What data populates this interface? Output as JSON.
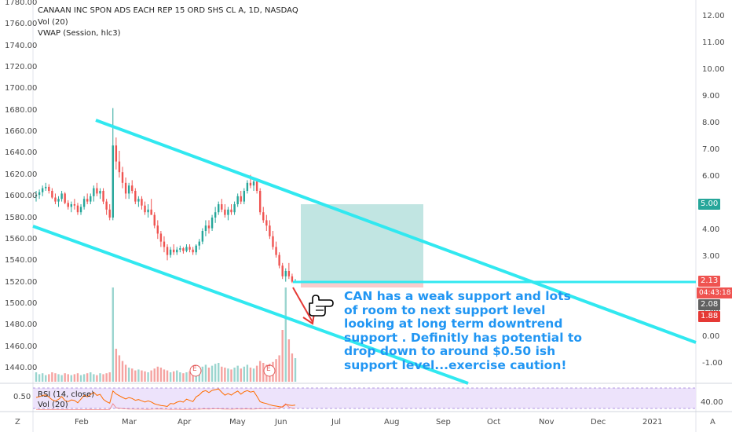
{
  "legend": {
    "title": "CANAAN INC SPON ADS EACH REP 15 ORD SHS CL A, 1D, NASDAQ",
    "vol": "Vol (20)",
    "vwap": "VWAP (Session, hlc3)"
  },
  "left_axis": [
    "1780.00",
    "1760.00",
    "1740.00",
    "1720.00",
    "1700.00",
    "1680.00",
    "1660.00",
    "1640.00",
    "1620.00",
    "1600.00",
    "1580.00",
    "1560.00",
    "1540.00",
    "1520.00",
    "1500.00",
    "1480.00",
    "1460.00",
    "1440.00"
  ],
  "right_axis": [
    "12.00",
    "11.00",
    "10.00",
    "9.00",
    "8.00",
    "7.00",
    "6.00",
    "5.00",
    "4.00",
    "3.00",
    "2.00",
    "1.00",
    "0.00",
    "-1.00"
  ],
  "right_badges": {
    "target": "5.00",
    "last": "2.13",
    "countdown": "04:43:18",
    "price2": "2.08",
    "stop": "1.88"
  },
  "x_axis": [
    "Feb",
    "Mar",
    "Apr",
    "May",
    "Jun",
    "Jul",
    "Aug",
    "Sep",
    "Oct",
    "Nov",
    "Dec",
    "2021"
  ],
  "events": [
    "E",
    "E"
  ],
  "rsi_panel": {
    "label": "RSI (14, close)",
    "vol": "Vol (20)",
    "left_tick": "0.50",
    "right_tick": "40.00"
  },
  "corners": {
    "bottom_left": "Z",
    "bottom_right": "A"
  },
  "annotation": "CAN has a weak support and lots of room to next support level looking at long term downtrend support . Definitly has potential to drop down to around $0.50 ish  support level...exercise caution!",
  "colors": {
    "channel": "#31e8f0",
    "candle_up": "#26a69a",
    "candle_down": "#ef5350",
    "annotation": "#2196f3",
    "target_zone": "#b2dfdb",
    "rsi_band": "#ede3fb",
    "rsi_line": "#ff6d00"
  },
  "chart_data": {
    "type": "candlestick",
    "price_scale_right": [
      -1,
      12
    ],
    "ohlc_price_right_axis": [
      [
        5.3,
        5.5,
        5.1,
        5.35
      ],
      [
        5.35,
        5.55,
        5.2,
        5.45
      ],
      [
        5.45,
        5.7,
        5.3,
        5.6
      ],
      [
        5.6,
        5.8,
        5.5,
        5.65
      ],
      [
        5.65,
        5.75,
        5.4,
        5.5
      ],
      [
        5.5,
        5.6,
        5.2,
        5.25
      ],
      [
        5.25,
        5.4,
        5.0,
        5.1
      ],
      [
        5.1,
        5.3,
        4.9,
        5.2
      ],
      [
        5.2,
        5.5,
        5.1,
        5.4
      ],
      [
        5.4,
        5.45,
        5.0,
        5.05
      ],
      [
        5.05,
        5.15,
        4.8,
        4.9
      ],
      [
        4.9,
        5.1,
        4.7,
        5.0
      ],
      [
        5.0,
        5.2,
        4.8,
        4.95
      ],
      [
        4.95,
        5.05,
        4.6,
        4.7
      ],
      [
        4.7,
        5.0,
        4.6,
        4.9
      ],
      [
        4.9,
        5.3,
        4.8,
        5.2
      ],
      [
        5.2,
        5.4,
        5.0,
        5.1
      ],
      [
        5.1,
        5.4,
        5.0,
        5.3
      ],
      [
        5.3,
        5.7,
        5.1,
        5.6
      ],
      [
        5.6,
        5.8,
        5.3,
        5.4
      ],
      [
        5.4,
        5.6,
        5.2,
        5.5
      ],
      [
        5.5,
        5.6,
        5.0,
        5.1
      ],
      [
        5.1,
        5.2,
        4.6,
        4.8
      ],
      [
        4.8,
        5.0,
        4.4,
        4.5
      ],
      [
        4.5,
        8.6,
        4.4,
        7.2
      ],
      [
        7.2,
        7.5,
        6.3,
        6.6
      ],
      [
        6.6,
        7.0,
        6.0,
        6.2
      ],
      [
        6.2,
        6.4,
        5.6,
        5.8
      ],
      [
        5.8,
        6.0,
        5.2,
        5.4
      ],
      [
        5.4,
        5.8,
        5.2,
        5.7
      ],
      [
        5.7,
        5.9,
        5.4,
        5.5
      ],
      [
        5.5,
        5.6,
        5.0,
        5.1
      ],
      [
        5.1,
        5.3,
        4.9,
        5.2
      ],
      [
        5.2,
        5.3,
        4.8,
        4.95
      ],
      [
        4.95,
        5.1,
        4.6,
        4.7
      ],
      [
        4.7,
        5.0,
        4.5,
        4.8
      ],
      [
        4.8,
        5.2,
        4.6,
        4.6
      ],
      [
        4.6,
        4.7,
        4.1,
        4.2
      ],
      [
        4.2,
        4.4,
        3.7,
        3.9
      ],
      [
        3.9,
        4.0,
        3.4,
        3.6
      ],
      [
        3.6,
        3.8,
        3.2,
        3.4
      ],
      [
        3.4,
        3.5,
        2.9,
        3.1
      ],
      [
        3.1,
        3.4,
        3.0,
        3.3
      ],
      [
        3.3,
        3.5,
        3.1,
        3.2
      ],
      [
        3.2,
        3.4,
        3.1,
        3.3
      ],
      [
        3.3,
        3.45,
        3.2,
        3.35
      ],
      [
        3.35,
        3.4,
        3.15,
        3.25
      ],
      [
        3.25,
        3.5,
        3.2,
        3.4
      ],
      [
        3.4,
        3.5,
        3.2,
        3.3
      ],
      [
        3.3,
        3.4,
        3.1,
        3.2
      ],
      [
        3.2,
        3.5,
        3.1,
        3.45
      ],
      [
        3.45,
        3.7,
        3.3,
        3.6
      ],
      [
        3.6,
        4.1,
        3.5,
        4.0
      ],
      [
        4.0,
        4.4,
        3.8,
        4.2
      ],
      [
        4.2,
        4.4,
        3.9,
        4.1
      ],
      [
        4.1,
        4.6,
        4.0,
        4.5
      ],
      [
        4.5,
        4.9,
        4.3,
        4.7
      ],
      [
        4.7,
        5.1,
        4.6,
        5.0
      ],
      [
        5.0,
        5.2,
        4.7,
        4.8
      ],
      [
        4.8,
        5.0,
        4.5,
        4.6
      ],
      [
        4.6,
        4.9,
        4.4,
        4.8
      ],
      [
        4.8,
        5.0,
        4.6,
        4.7
      ],
      [
        4.7,
        5.1,
        4.6,
        5.0
      ],
      [
        5.0,
        5.4,
        4.9,
        5.3
      ],
      [
        5.3,
        5.5,
        5.0,
        5.1
      ],
      [
        5.1,
        5.6,
        5.0,
        5.5
      ],
      [
        5.5,
        5.9,
        5.4,
        5.8
      ],
      [
        5.8,
        6.1,
        5.6,
        5.7
      ],
      [
        5.7,
        5.9,
        5.5,
        5.85
      ],
      [
        5.85,
        5.95,
        5.4,
        5.5
      ],
      [
        5.5,
        5.6,
        4.6,
        4.7
      ],
      [
        4.7,
        4.9,
        4.3,
        4.4
      ],
      [
        4.4,
        4.6,
        4.0,
        4.2
      ],
      [
        4.2,
        4.4,
        3.7,
        3.8
      ],
      [
        3.8,
        4.0,
        3.3,
        3.4
      ],
      [
        3.4,
        3.6,
        3.0,
        3.1
      ],
      [
        3.1,
        3.2,
        2.6,
        2.7
      ],
      [
        2.7,
        2.8,
        2.2,
        2.3
      ],
      [
        2.3,
        2.6,
        2.1,
        2.5
      ],
      [
        2.5,
        2.8,
        2.2,
        2.3
      ],
      [
        2.3,
        2.4,
        2.05,
        2.1
      ],
      [
        2.1,
        2.2,
        2.05,
        2.13
      ]
    ],
    "volume_relative": [
      0.1,
      0.08,
      0.09,
      0.07,
      0.08,
      0.1,
      0.09,
      0.08,
      0.07,
      0.09,
      0.08,
      0.07,
      0.08,
      0.09,
      0.07,
      0.08,
      0.09,
      0.1,
      0.08,
      0.07,
      0.09,
      0.08,
      0.09,
      0.1,
      1.0,
      0.35,
      0.28,
      0.22,
      0.18,
      0.15,
      0.14,
      0.12,
      0.13,
      0.12,
      0.11,
      0.1,
      0.12,
      0.14,
      0.16,
      0.15,
      0.13,
      0.12,
      0.1,
      0.11,
      0.12,
      0.1,
      0.09,
      0.1,
      0.11,
      0.1,
      0.12,
      0.13,
      0.16,
      0.18,
      0.15,
      0.17,
      0.19,
      0.2,
      0.16,
      0.15,
      0.14,
      0.13,
      0.15,
      0.17,
      0.14,
      0.16,
      0.18,
      0.15,
      0.14,
      0.17,
      0.22,
      0.2,
      0.18,
      0.19,
      0.21,
      0.24,
      0.28,
      0.55,
      1.0,
      0.45,
      0.3,
      0.25
    ]
  }
}
